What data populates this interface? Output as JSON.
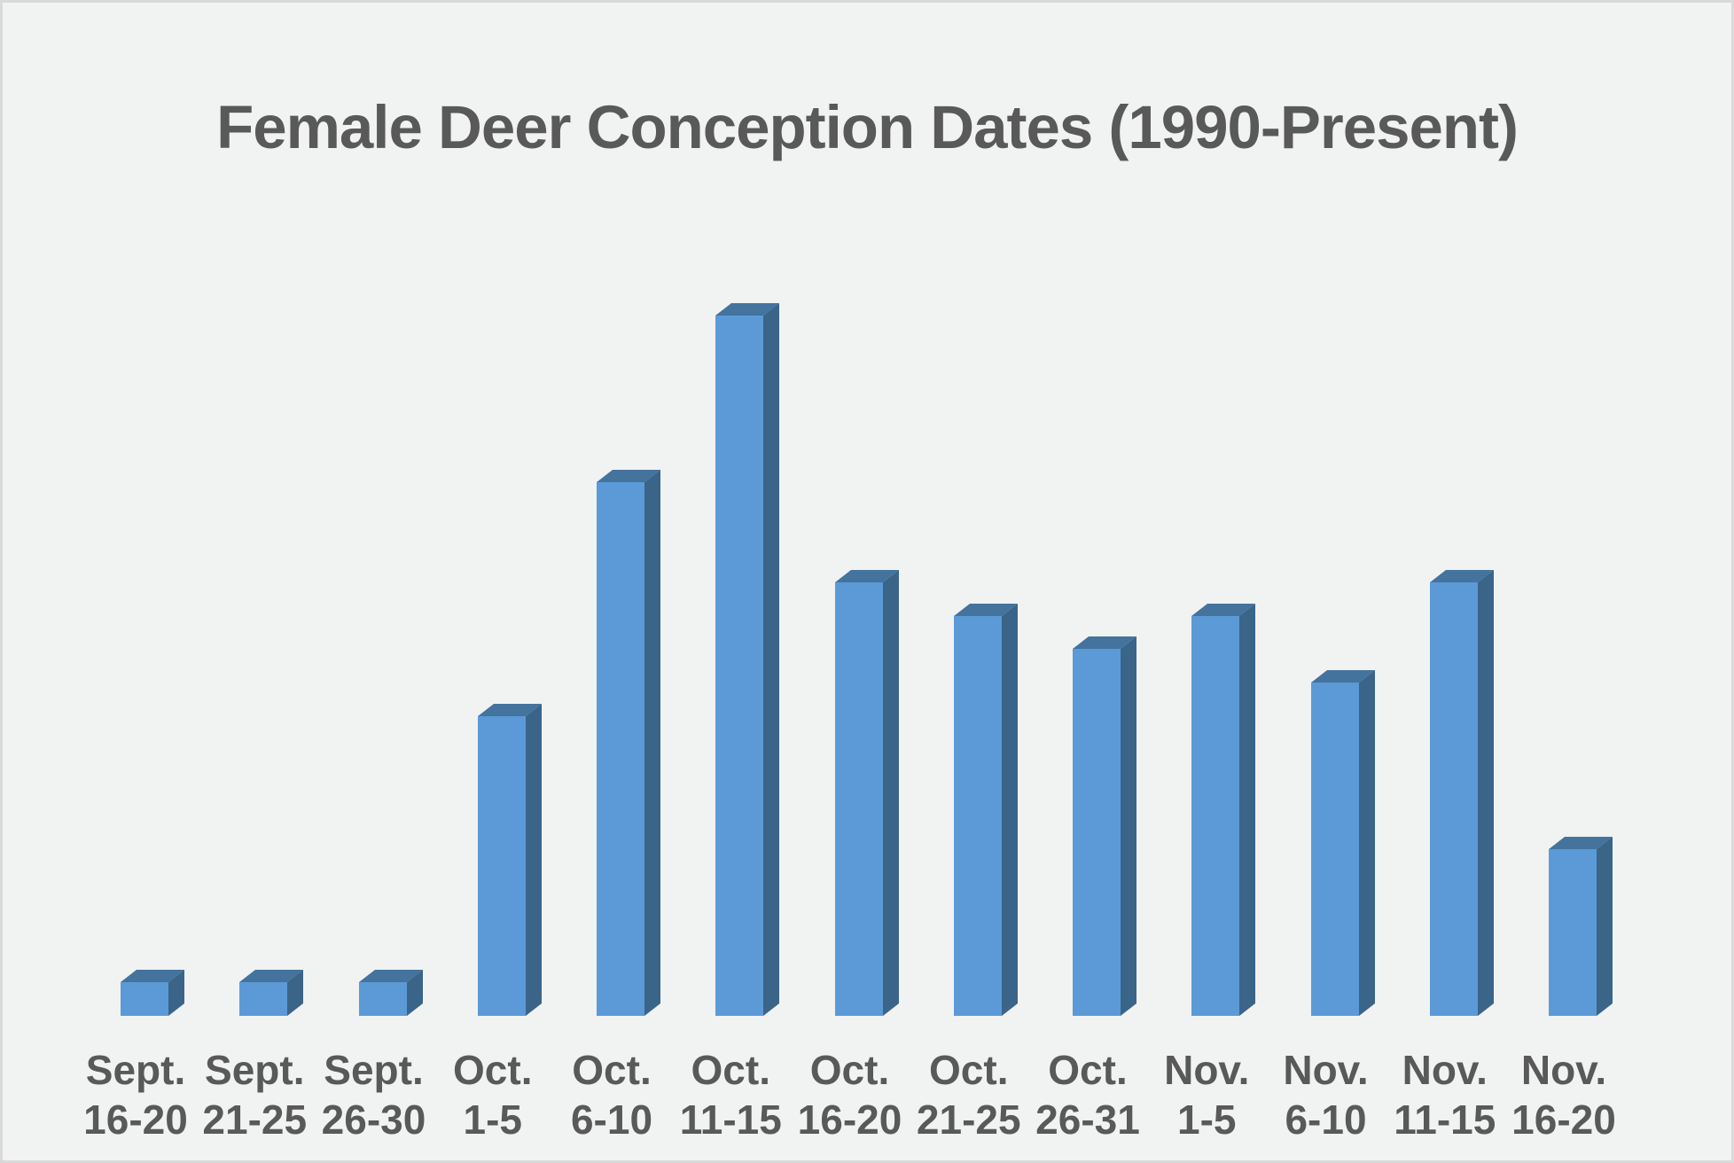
{
  "chart_data": {
    "type": "bar",
    "style": "3d-column",
    "title": "Female Deer Conception Dates (1990-Present)",
    "categories": [
      "Sept. 16-20",
      "Sept. 21-25",
      "Sept. 26-30",
      "Oct. 1-5",
      "Oct. 6-10",
      "Oct. 11-15",
      "Oct. 16-20",
      "Oct. 21-25",
      "Oct. 26-31",
      "Nov. 1-5",
      "Nov. 6-10",
      "Nov. 11-15",
      "Nov. 16-20"
    ],
    "values": [
      1,
      1,
      1,
      9,
      16,
      21,
      13,
      12,
      11,
      12,
      10,
      13,
      5
    ],
    "values_note": "No value axis is shown in the image; values are relative units estimated from bar heights (smallest bars = 1 unit).",
    "xlabel": "",
    "ylabel": "",
    "ylim": [
      0,
      22
    ],
    "grid": false,
    "legend": false,
    "value_axis_visible": false,
    "category_axis_line_visible": false
  },
  "colors": {
    "bar_front": "#5B9AD7",
    "bar_top": "#44739E",
    "bar_side": "#3B6489",
    "background": "#F1F2F2",
    "border": "#D9D9D9",
    "text": "#595959"
  }
}
